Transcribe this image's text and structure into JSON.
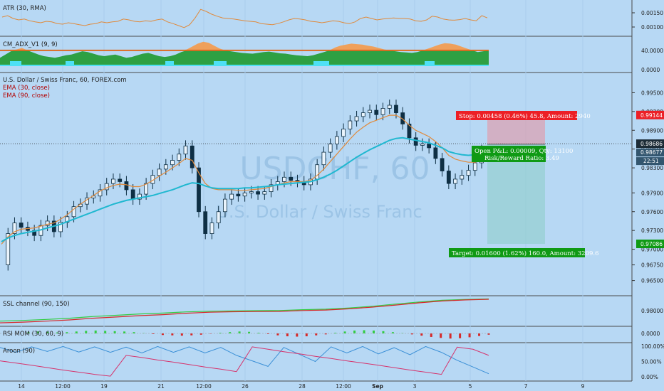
{
  "chart_data": [
    {
      "type": "line",
      "title": "ATR (30, RMA)",
      "y_ticks": [
        "0.00150",
        "0.00100"
      ],
      "ylim": [
        0.0008,
        0.0018
      ],
      "values": [
        0.00135,
        0.0014,
        0.0013,
        0.00125,
        0.00128,
        0.00122,
        0.00118,
        0.00115,
        0.0012,
        0.00118,
        0.00112,
        0.0011,
        0.00115,
        0.00112,
        0.00108,
        0.00105,
        0.0011,
        0.00112,
        0.00118,
        0.00115,
        0.00118,
        0.0012,
        0.00128,
        0.00125,
        0.0012,
        0.00118,
        0.00122,
        0.0012,
        0.00125,
        0.00128,
        0.00118,
        0.00112,
        0.00105,
        0.00098,
        0.00108,
        0.00132,
        0.00162,
        0.00155,
        0.00145,
        0.00138,
        0.00132,
        0.0013,
        0.00128,
        0.00125,
        0.00122,
        0.0012,
        0.00118,
        0.00112,
        0.0011,
        0.00108,
        0.00112,
        0.00118,
        0.00125,
        0.0013,
        0.00128,
        0.00125,
        0.0012,
        0.00118,
        0.00115,
        0.00118,
        0.00122,
        0.0012,
        0.00115,
        0.00112,
        0.00118,
        0.0013,
        0.00135,
        0.0013,
        0.00125,
        0.00128,
        0.0013,
        0.00132,
        0.0013,
        0.0013,
        0.00128,
        0.00122,
        0.0012,
        0.00125,
        0.00138,
        0.00135,
        0.00128,
        0.00125,
        0.00124,
        0.00126,
        0.0013,
        0.00125,
        0.00122,
        0.0014,
        0.00132
      ]
    },
    {
      "type": "area",
      "title": "CM_ADX_V1 (9, 9)",
      "y_ticks": [
        "40.0000",
        "0.0000"
      ],
      "ylim": [
        0,
        65
      ],
      "threshold": 40,
      "values": [
        22,
        30,
        38,
        42,
        45,
        40,
        35,
        30,
        26,
        24,
        22,
        25,
        28,
        30,
        34,
        38,
        36,
        32,
        28,
        26,
        28,
        30,
        26,
        22,
        24,
        28,
        32,
        34,
        30,
        26,
        24,
        26,
        30,
        36,
        42,
        48,
        54,
        58,
        56,
        50,
        44,
        40,
        38,
        36,
        34,
        33,
        32,
        34,
        36,
        37,
        35,
        33,
        32,
        30,
        28,
        27,
        26,
        28,
        32,
        36,
        40,
        46,
        50,
        52,
        54,
        53,
        52,
        50,
        48,
        45,
        42,
        40,
        38,
        36,
        35,
        34,
        36,
        40,
        44,
        48,
        52,
        55,
        54,
        52,
        48,
        44,
        40,
        36,
        38,
        40
      ]
    },
    {
      "type": "line",
      "title": "U.S. Dollar / Swiss Franc, 60, FOREX.com",
      "legend": [
        "EMA (30, close)",
        "EMA (90, close)"
      ],
      "y_ticks": [
        "0.99500",
        "0.99200",
        "0.98900",
        "0.98600",
        "0.98300",
        "0.97900",
        "0.97600",
        "0.97300",
        "0.97000",
        "0.96750",
        "0.96500"
      ],
      "ylim": [
        0.9628,
        0.998
      ],
      "x_ticks": [
        "14",
        "12:00",
        "19",
        "21",
        "12:00",
        "26",
        "28",
        "12:00",
        "Sep",
        "3",
        "5",
        "7",
        "9"
      ],
      "series": [
        {
          "name": "Price",
          "values": [
            0.9675,
            0.9725,
            0.9742,
            0.9735,
            0.973,
            0.9722,
            0.9738,
            0.9745,
            0.9728,
            0.9743,
            0.9752,
            0.9768,
            0.9772,
            0.9782,
            0.9785,
            0.9795,
            0.9805,
            0.9812,
            0.9808,
            0.9795,
            0.978,
            0.9788,
            0.9805,
            0.9818,
            0.9828,
            0.9835,
            0.9842,
            0.9852,
            0.9865,
            0.983,
            0.976,
            0.9725,
            0.9742,
            0.976,
            0.978,
            0.9788,
            0.9785,
            0.979,
            0.9792,
            0.9788,
            0.9792,
            0.9803,
            0.9808,
            0.9815,
            0.981,
            0.9808,
            0.9803,
            0.9812,
            0.9835,
            0.9855,
            0.9868,
            0.988,
            0.9892,
            0.9905,
            0.9912,
            0.9918,
            0.9922,
            0.9915,
            0.9925,
            0.993,
            0.9918,
            0.99,
            0.9878,
            0.9866,
            0.9868,
            0.9862,
            0.9845,
            0.9825,
            0.9805,
            0.9812,
            0.9818,
            0.9826,
            0.9838,
            0.9858
          ]
        },
        {
          "name": "EMA (30, close)",
          "values": [
            0.9708,
            0.972,
            0.9728,
            0.9732,
            0.9733,
            0.9734,
            0.9737,
            0.974,
            0.9742,
            0.9748,
            0.9755,
            0.9764,
            0.9772,
            0.9779,
            0.9786,
            0.9793,
            0.9798,
            0.9802,
            0.9804,
            0.9803,
            0.98,
            0.98,
            0.9804,
            0.981,
            0.9817,
            0.9823,
            0.983,
            0.9837,
            0.9845,
            0.9842,
            0.9822,
            0.9805,
            0.9797,
            0.9795,
            0.9795,
            0.9795,
            0.9794,
            0.9794,
            0.9795,
            0.9796,
            0.9797,
            0.98,
            0.9803,
            0.9806,
            0.9808,
            0.9808,
            0.9808,
            0.981,
            0.9818,
            0.9828,
            0.984,
            0.9852,
            0.9864,
            0.9876,
            0.9887,
            0.9895,
            0.9902,
            0.9906,
            0.991,
            0.9914,
            0.9914,
            0.9908,
            0.9898,
            0.989,
            0.9885,
            0.988,
            0.9872,
            0.9862,
            0.985,
            0.9844,
            0.9841,
            0.9839,
            0.9839,
            0.9842
          ]
        },
        {
          "name": "EMA (90, close)",
          "values": [
            0.9712,
            0.9718,
            0.9722,
            0.9725,
            0.9727,
            0.9729,
            0.9731,
            0.9734,
            0.9737,
            0.974,
            0.9744,
            0.9748,
            0.9752,
            0.9756,
            0.976,
            0.9764,
            0.9768,
            0.9772,
            0.9775,
            0.9778,
            0.978,
            0.9782,
            0.9784,
            0.9786,
            0.9789,
            0.9792,
            0.9795,
            0.9799,
            0.9803,
            0.9806,
            0.9805,
            0.9801,
            0.9798,
            0.9797,
            0.9797,
            0.9797,
            0.9797,
            0.9798,
            0.9798,
            0.9799,
            0.98,
            0.9801,
            0.9803,
            0.9804,
            0.9805,
            0.9806,
            0.9807,
            0.9808,
            0.9811,
            0.9815,
            0.982,
            0.9826,
            0.9833,
            0.984,
            0.9847,
            0.9853,
            0.9859,
            0.9864,
            0.9869,
            0.9874,
            0.9877,
            0.9878,
            0.9876,
            0.9874,
            0.9872,
            0.987,
            0.9866,
            0.9862,
            0.9856,
            0.9853,
            0.9851,
            0.985,
            0.9851,
            0.9853
          ]
        }
      ],
      "markers": {
        "current_price": "0.98686",
        "entry_price": "0.98677",
        "countdown": "22:51",
        "stop_price": "0.99144",
        "target_price": "0.97086"
      },
      "annotations": {
        "stop": "Stop: 0.00458 (0.46%) 45.8, Amount: 2940",
        "open_pnl": "Open P&L: 0.00009, Qty: 13100",
        "risk_reward": "Risk/Reward Ratio: 3.49",
        "target": "Target: 0.01600 (1.62%) 160.0, Amount: 3209.6"
      },
      "watermark": {
        "symbol": "USDCHF, 60",
        "name": "U.S. Dollar / Swiss Franc"
      }
    },
    {
      "type": "line",
      "title": "SSL channel (90, 150)",
      "y_ticks": [
        "0.98000"
      ],
      "series": [
        {
          "name": "up",
          "values": [
            0.9738,
            0.9742,
            0.9748,
            0.9755,
            0.9765,
            0.9772,
            0.978,
            0.9785,
            0.9792,
            0.9796,
            0.9798,
            0.9799,
            0.98,
            0.9805,
            0.9808,
            0.9815,
            0.9825,
            0.9838,
            0.985,
            0.986,
            0.9865,
            0.9868
          ]
        },
        {
          "name": "down",
          "values": [
            0.9728,
            0.9732,
            0.9738,
            0.9745,
            0.9755,
            0.9762,
            0.977,
            0.9776,
            0.9784,
            0.979,
            0.9793,
            0.9794,
            0.9795,
            0.98,
            0.9803,
            0.981,
            0.982,
            0.9832,
            0.9845,
            0.9856,
            0.9862,
            0.9866
          ]
        }
      ]
    },
    {
      "type": "bar",
      "title": "RSI MOM (30, 60, 9)",
      "y_ticks": [
        "0.0000"
      ],
      "values": [
        0.2,
        0.3,
        0.25,
        0.15,
        0.2,
        0.3,
        0.4,
        0.45,
        0.4,
        0.35,
        0.3,
        0.2,
        0.05,
        -0.1,
        -0.25,
        -0.3,
        -0.35,
        -0.3,
        -0.2,
        -0.05,
        0.1,
        0.2,
        0.3,
        0.25,
        0.1,
        -0.1,
        -0.3,
        -0.45,
        -0.5,
        -0.45,
        -0.3,
        -0.15,
        0.1,
        0.3,
        0.45,
        0.5,
        0.45,
        0.35,
        0.2,
        0.05,
        -0.15,
        -0.35,
        -0.55,
        -0.7,
        -0.8,
        -0.75,
        -0.6,
        -0.4,
        -0.2
      ]
    },
    {
      "type": "line",
      "title": "Aroon (90)",
      "y_ticks": [
        "100.00%",
        "50.00%",
        "0.00%"
      ],
      "ylim": [
        0,
        100
      ],
      "series": [
        {
          "name": "up",
          "values": [
            96,
            80,
            98,
            83,
            99,
            81,
            98,
            80,
            97,
            78,
            99,
            80,
            98,
            78,
            96,
            70,
            52,
            34,
            96,
            73,
            50,
            98,
            78,
            99,
            75,
            95,
            72,
            99,
            80,
            54,
            32,
            10
          ]
        },
        {
          "name": "down",
          "values": [
            52,
            45,
            38,
            30,
            22,
            15,
            8,
            2,
            70,
            63,
            55,
            48,
            40,
            32,
            25,
            17,
            98,
            90,
            82,
            75,
            67,
            60,
            52,
            45,
            38,
            30,
            22,
            15,
            8,
            97,
            90,
            70
          ]
        }
      ]
    }
  ],
  "colors": {
    "background": "#b7d8f4",
    "ema30": "#e08a3c",
    "ema90": "#20b8d0",
    "candle": "#0e2f44",
    "atr": "#e08a3c",
    "adx_orange": "#f59a4a",
    "adx_green": "#2ea043",
    "adx_cyan": "#4fe0f5",
    "stop_box": "#ec1f26",
    "target_box": "#0f9a14",
    "ssl_green": "#33cc44",
    "ssl_red": "#d62828",
    "aroon_up": "#3a8fd6",
    "aroon_down": "#d6336c"
  }
}
